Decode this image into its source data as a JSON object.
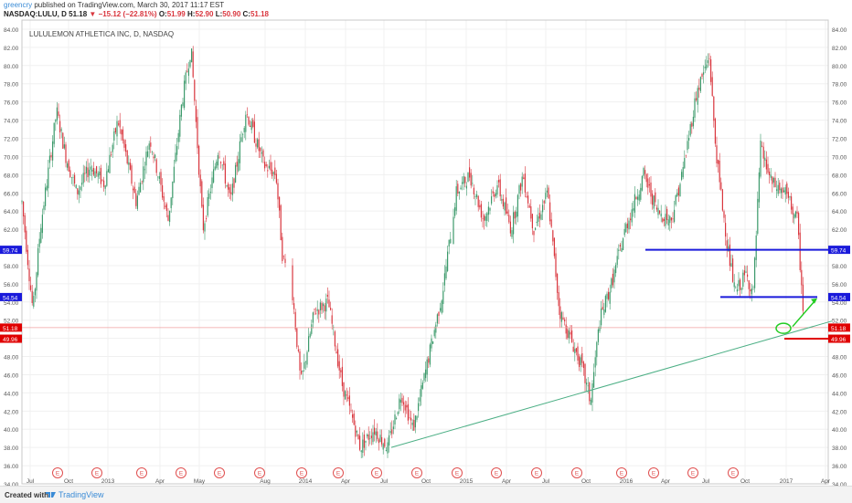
{
  "header": {
    "user": "greencry",
    "published": "published on TradingView.com, March 30, 2017 11:17 EST",
    "symbol": "NASDAQ:LULU, D",
    "last": "51.18",
    "change": "−15.12 (−22.81%)",
    "o_label": "O:",
    "o_value": "51.99",
    "h_label": "H:",
    "h_value": "52.90",
    "l_label": "L:",
    "l_value": "50.90",
    "c_label": "C:",
    "c_value": "51.18"
  },
  "footer": {
    "created": "Created with",
    "brand": "TradingView"
  },
  "colors": {
    "up": "#3c9a6b",
    "down": "#d9363e",
    "blue": "#1a1adb",
    "red": "#e00000",
    "trend": "#4caf85",
    "arrow": "#22cc22",
    "price_line": "#f0a0a0"
  },
  "chart_data": {
    "type": "candlestick",
    "title": "LULULEMON ATHLETICA INC, D, NASDAQ",
    "ylim": [
      34,
      85
    ],
    "y_ticks": [
      "84.00",
      "82.00",
      "80.00",
      "78.00",
      "76.00",
      "74.00",
      "72.00",
      "70.00",
      "68.00",
      "66.00",
      "64.00",
      "62.00",
      "60.00",
      "58.00",
      "56.00",
      "54.00",
      "52.00",
      "50.00",
      "48.00",
      "46.00",
      "44.00",
      "42.00",
      "40.00",
      "38.00",
      "36.00",
      "34.00"
    ],
    "x_ticks": [
      "Jul",
      "Oct",
      "2013",
      "Apr",
      "May",
      "Aug",
      "2014",
      "Apr",
      "Jul",
      "Oct",
      "2015",
      "Apr",
      "Jul",
      "Oct",
      "2016",
      "Apr",
      "Jul",
      "Oct",
      "2017",
      "Apr",
      "Jul"
    ],
    "price_series": [
      [
        0,
        65
      ],
      [
        12,
        53
      ],
      [
        20,
        62
      ],
      [
        38,
        75
      ],
      [
        48,
        70
      ],
      [
        60,
        66
      ],
      [
        75,
        69
      ],
      [
        90,
        67
      ],
      [
        105,
        74
      ],
      [
        125,
        65
      ],
      [
        140,
        72
      ],
      [
        160,
        63
      ],
      [
        175,
        76
      ],
      [
        185,
        82
      ],
      [
        198,
        62
      ],
      [
        215,
        71
      ],
      [
        228,
        65
      ],
      [
        245,
        75
      ],
      [
        265,
        69
      ],
      [
        278,
        68
      ],
      [
        285,
        59
      ],
      [
        295,
        56
      ],
      [
        305,
        45
      ],
      [
        320,
        53
      ],
      [
        335,
        54
      ],
      [
        350,
        45
      ],
      [
        362,
        41
      ],
      [
        370,
        38
      ],
      [
        385,
        40
      ],
      [
        400,
        38
      ],
      [
        415,
        44
      ],
      [
        428,
        40
      ],
      [
        445,
        48
      ],
      [
        460,
        55
      ],
      [
        475,
        66
      ],
      [
        490,
        68
      ],
      [
        505,
        63
      ],
      [
        520,
        67
      ],
      [
        535,
        62
      ],
      [
        548,
        68
      ],
      [
        560,
        62
      ],
      [
        575,
        66
      ],
      [
        588,
        53
      ],
      [
        600,
        50
      ],
      [
        612,
        47
      ],
      [
        622,
        43
      ],
      [
        632,
        52
      ],
      [
        645,
        56
      ],
      [
        660,
        62
      ],
      [
        680,
        68
      ],
      [
        695,
        64
      ],
      [
        710,
        63
      ],
      [
        722,
        68
      ],
      [
        738,
        77
      ],
      [
        752,
        81
      ],
      [
        758,
        72
      ],
      [
        762,
        68
      ],
      [
        772,
        60
      ],
      [
        780,
        55
      ],
      [
        792,
        57
      ],
      [
        800,
        55
      ],
      [
        808,
        71
      ],
      [
        820,
        67
      ],
      [
        835,
        66
      ],
      [
        848,
        63
      ],
      [
        856,
        51
      ]
    ],
    "earnings_markers": [
      "E",
      "E",
      "E",
      "E",
      "E",
      "E",
      "E",
      "E",
      "E",
      "E",
      "E",
      "E",
      "E",
      "E",
      "E",
      "E",
      "E",
      "E",
      "E"
    ],
    "price_labels": [
      {
        "value": "59.74",
        "color": "blue"
      },
      {
        "value": "54.54",
        "color": "blue"
      },
      {
        "value": "51.18",
        "color": "red"
      },
      {
        "value": "49.96",
        "color": "red"
      }
    ],
    "horizontal_levels": [
      59.74,
      54.54,
      49.96
    ],
    "trendline": [
      [
        428,
        38
      ],
      [
        910,
        51.9
      ]
    ],
    "current_price": 51.18
  }
}
